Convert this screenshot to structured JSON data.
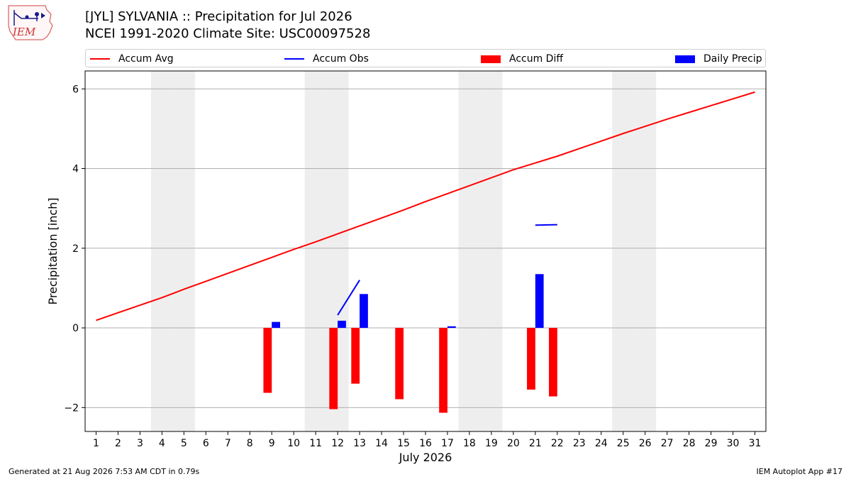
{
  "header": {
    "logo_text": "IEM",
    "title_line1": "[JYL] SYLVANIA :: Precipitation for Jul 2026",
    "title_line2": "NCEI 1991-2020 Climate Site: USC00097528"
  },
  "legend": {
    "accum_avg": "Accum Avg",
    "accum_obs": "Accum Obs",
    "accum_diff": "Accum Diff",
    "daily_precip": "Daily Precip"
  },
  "footer": {
    "generated": "Generated at 21 Aug 2026 7:53 AM CDT in 0.79s",
    "app": "IEM Autoplot App #17"
  },
  "colors": {
    "avg": "#ff0000",
    "obs": "#0000ff",
    "diff": "#ff0000",
    "daily": "#0000ff",
    "weekend_shade": "#eeeeee",
    "grid": "#b0b0b0"
  },
  "chart_data": {
    "type": "bar",
    "title": "[JYL] SYLVANIA :: Precipitation for Jul 2026",
    "subtitle": "NCEI 1991-2020 Climate Site: USC00097528",
    "xlabel": "July 2026",
    "ylabel": "Precipitation [inch]",
    "ylim": [
      -2.6,
      6.45
    ],
    "xlim": [
      0.5,
      31.5
    ],
    "yticks": [
      -2,
      0,
      2,
      4,
      6
    ],
    "ytick_labels": [
      "−2",
      "0",
      "2",
      "4",
      "6"
    ],
    "days": [
      1,
      2,
      3,
      4,
      5,
      6,
      7,
      8,
      9,
      10,
      11,
      12,
      13,
      14,
      15,
      16,
      17,
      18,
      19,
      20,
      21,
      22,
      23,
      24,
      25,
      26,
      27,
      28,
      29,
      30,
      31
    ],
    "grid": true,
    "legend_position": "top",
    "weekend_days": [
      4,
      5,
      11,
      12,
      18,
      19,
      25,
      26
    ],
    "series": [
      {
        "name": "Accum Avg",
        "kind": "line",
        "x": [
          1,
          2,
          3,
          4,
          5,
          6,
          7,
          8,
          9,
          10,
          11,
          12,
          13,
          14,
          15,
          16,
          17,
          18,
          19,
          20,
          21,
          22,
          23,
          24,
          25,
          26,
          27,
          28,
          29,
          30,
          31
        ],
        "values": [
          0.19,
          0.38,
          0.57,
          0.76,
          0.97,
          1.17,
          1.37,
          1.57,
          1.77,
          1.97,
          2.16,
          2.36,
          2.56,
          2.76,
          2.96,
          3.17,
          3.37,
          3.57,
          3.77,
          3.97,
          4.14,
          4.31,
          4.5,
          4.69,
          4.88,
          5.06,
          5.24,
          5.41,
          5.58,
          5.75,
          5.92
        ]
      },
      {
        "name": "Accum Obs",
        "kind": "line",
        "segments": [
          {
            "x": [
              12,
              13
            ],
            "values": [
              0.32,
              1.2
            ]
          },
          {
            "x": [
              21,
              22
            ],
            "values": [
              2.58,
              2.59
            ]
          }
        ]
      },
      {
        "name": "Accum Diff",
        "kind": "bar",
        "x": [
          9,
          12,
          13,
          15,
          17,
          21,
          22
        ],
        "values": [
          -1.63,
          -2.04,
          -1.4,
          -1.79,
          -2.13,
          -1.55,
          -1.72
        ]
      },
      {
        "name": "Daily Precip",
        "kind": "bar",
        "x": [
          9,
          12,
          13,
          17,
          21
        ],
        "values": [
          0.15,
          0.18,
          0.85,
          0.04,
          1.35
        ]
      }
    ]
  }
}
